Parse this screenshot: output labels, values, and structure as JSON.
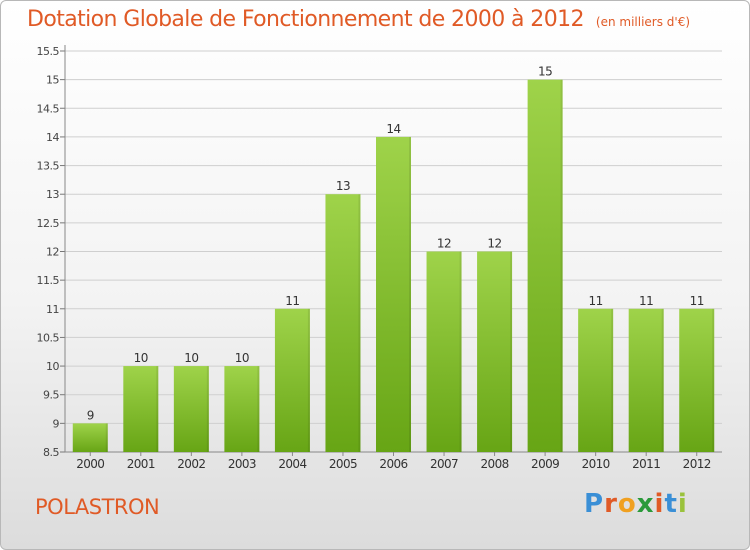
{
  "title": "Dotation Globale de Fonctionnement de 2000 à 2012",
  "unit_note": "(en milliers d'€)",
  "location": "POLASTRON",
  "brand": {
    "letters": [
      "P",
      "r",
      "o",
      "x",
      "i",
      "t",
      "i"
    ],
    "colors": [
      "#3a8fd6",
      "#e05a26",
      "#f0a020",
      "#2a9a3a",
      "#e05a26",
      "#3a8fd6",
      "#9ac23c"
    ]
  },
  "colors": {
    "bar_light": "#9fd34a",
    "bar_dark": "#67a515",
    "grid": "#cfcfcf",
    "accent": "#e05a26"
  },
  "chart_data": {
    "type": "bar",
    "title": "Dotation Globale de Fonctionnement de 2000 à 2012",
    "categories": [
      "2000",
      "2001",
      "2002",
      "2003",
      "2004",
      "2005",
      "2006",
      "2007",
      "2008",
      "2009",
      "2010",
      "2011",
      "2012"
    ],
    "values": [
      9,
      10,
      10,
      10,
      11,
      13,
      14,
      12,
      12,
      15,
      11,
      11,
      11
    ],
    "data_labels": [
      "9",
      "10",
      "10",
      "10",
      "11",
      "13",
      "14",
      "12",
      "12",
      "15",
      "11",
      "11",
      "11"
    ],
    "yticks": [
      "8.5",
      "9",
      "9.5",
      "10",
      "10.5",
      "11",
      "11.5",
      "12",
      "12.5",
      "13",
      "13.5",
      "14",
      "14.5",
      "15",
      "15.5"
    ],
    "ylim": [
      8.5,
      15.5
    ],
    "grid": true,
    "legend": "none"
  }
}
